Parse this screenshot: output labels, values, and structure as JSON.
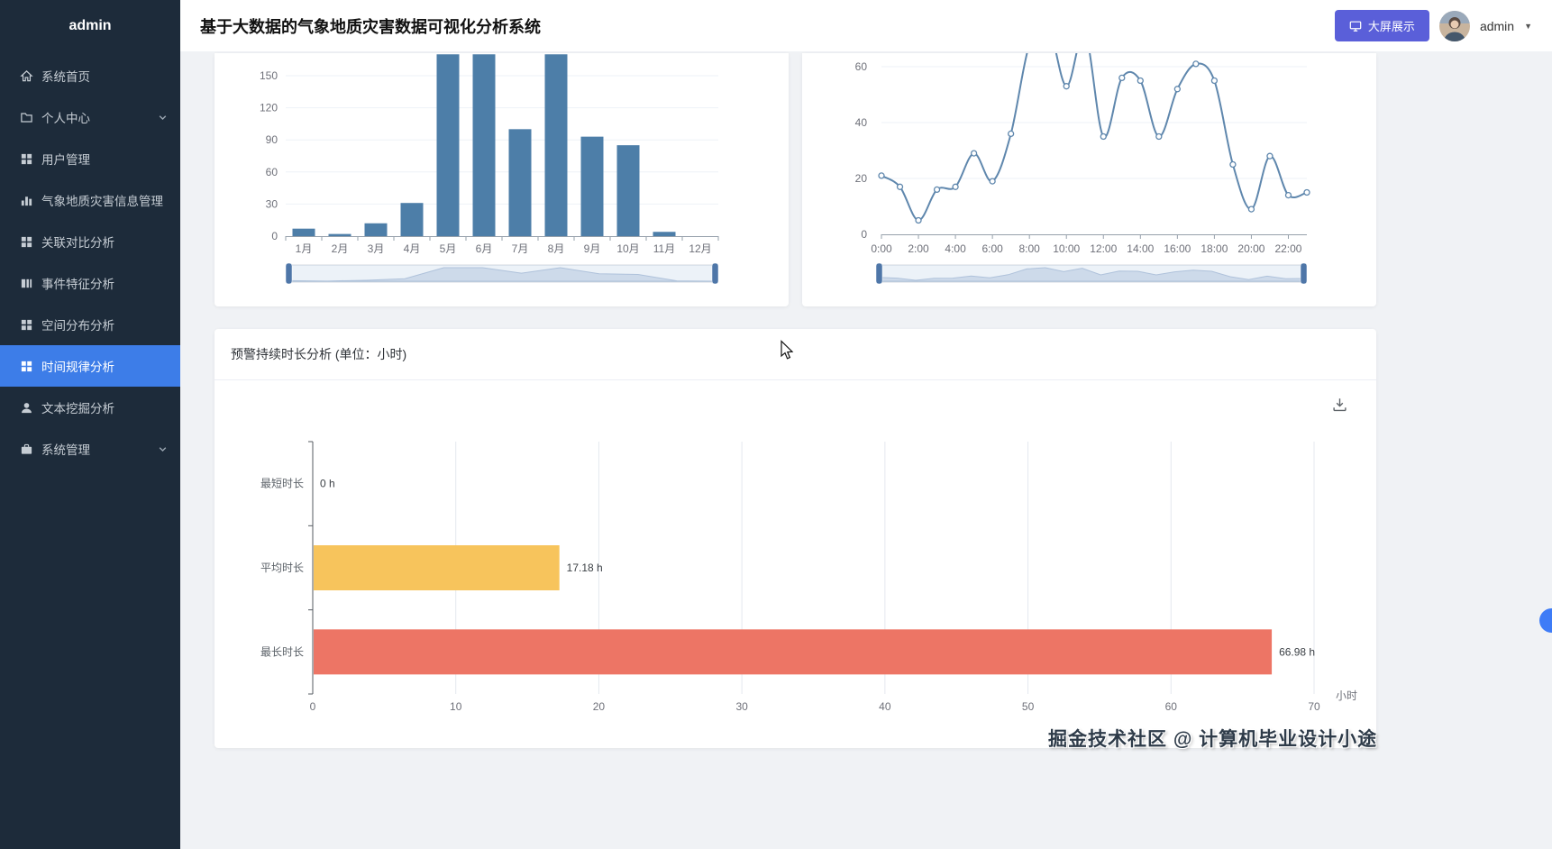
{
  "colors": {
    "sidebar_bg": "#1d2b3a",
    "active_menu": "#3d7de8",
    "primary_button": "#5a5fd9",
    "bar_blue": "#4d7ea8",
    "line_blue": "#5f87ad",
    "bar_yellow": "#f7c45c",
    "bar_red": "#ed7565"
  },
  "header": {
    "title": "基于大数据的气象地质灾害数据可视化分析系统",
    "big_screen_label": "大屏展示",
    "username": "admin"
  },
  "sidebar": {
    "brand": "admin",
    "items": [
      {
        "name": "home",
        "label": "系统首页",
        "icon": "home-icon",
        "active": false,
        "expandable": false
      },
      {
        "name": "personal-center",
        "label": "个人中心",
        "icon": "folder-icon",
        "active": false,
        "expandable": true
      },
      {
        "name": "user-management",
        "label": "用户管理",
        "icon": "grid-icon",
        "active": false,
        "expandable": false
      },
      {
        "name": "disaster-info-management",
        "label": "气象地质灾害信息管理",
        "icon": "bar-chart-icon",
        "active": false,
        "expandable": false
      },
      {
        "name": "association-analysis",
        "label": "关联对比分析",
        "icon": "grid-icon",
        "active": false,
        "expandable": false
      },
      {
        "name": "event-feature-analysis",
        "label": "事件特征分析",
        "icon": "columns-icon",
        "active": false,
        "expandable": false
      },
      {
        "name": "spatial-analysis",
        "label": "空间分布分析",
        "icon": "grid-icon",
        "active": false,
        "expandable": false
      },
      {
        "name": "time-pattern-analysis",
        "label": "时间规律分析",
        "icon": "grid-icon",
        "active": true,
        "expandable": false
      },
      {
        "name": "text-mining-analysis",
        "label": "文本挖掘分析",
        "icon": "user-icon",
        "active": false,
        "expandable": false
      },
      {
        "name": "system-management",
        "label": "系统管理",
        "icon": "briefcase-icon",
        "active": false,
        "expandable": true
      }
    ]
  },
  "duration_card": {
    "title": "预警持续时长分析 (单位：小时)"
  },
  "watermark": "掘金技术社区 @ 计算机毕业设计小途",
  "chart_data": [
    {
      "type": "bar",
      "title": "",
      "categories": [
        "1月",
        "2月",
        "3月",
        "4月",
        "5月",
        "6月",
        "7月",
        "8月",
        "9月",
        "10月",
        "11月",
        "12月"
      ],
      "values": [
        7,
        2,
        12,
        31,
        170,
        170,
        100,
        170,
        93,
        85,
        4,
        0
      ],
      "yticks": [
        0,
        30,
        60,
        90,
        120,
        150
      ],
      "xlabel": "",
      "ylabel": "",
      "color": "#4d7ea8",
      "datazoom_slider": true,
      "note": "card cropped at top by page scroll; bars for 5月/6月/8月 extend past visible top (>150)"
    },
    {
      "type": "line",
      "title": "",
      "x": [
        "0:00",
        "1:00",
        "2:00",
        "3:00",
        "4:00",
        "5:00",
        "6:00",
        "7:00",
        "8:00",
        "9:00",
        "10:00",
        "11:00",
        "12:00",
        "13:00",
        "14:00",
        "15:00",
        "16:00",
        "17:00",
        "18:00",
        "19:00",
        "20:00",
        "21:00",
        "22:00",
        "23:00"
      ],
      "values": [
        21,
        17,
        5,
        16,
        17,
        29,
        19,
        36,
        68,
        75,
        53,
        72,
        35,
        56,
        55,
        35,
        52,
        61,
        55,
        25,
        9,
        28,
        14,
        15
      ],
      "yticks": [
        0,
        20,
        40,
        60
      ],
      "xtick_labels": [
        "0:00",
        "2:00",
        "4:00",
        "6:00",
        "8:00",
        "10:00",
        "12:00",
        "14:00",
        "16:00",
        "18:00",
        "20:00",
        "22:00"
      ],
      "xlabel": "",
      "ylabel": "",
      "color": "#5f87ad",
      "smooth": true,
      "datazoom_slider": true,
      "note": "peaks near 9:00 and 11:00 cropped above 60 by page scroll"
    },
    {
      "type": "bar",
      "orientation": "horizontal",
      "title": "预警持续时长分析 (单位：小时)",
      "categories": [
        "最短时长",
        "平均时长",
        "最长时长"
      ],
      "values": [
        0,
        17.18,
        66.98
      ],
      "value_labels": [
        "0 h",
        "17.18 h",
        "66.98 h"
      ],
      "bar_colors": [
        null,
        "#f7c45c",
        "#ed7565"
      ],
      "xticks": [
        0,
        10,
        20,
        30,
        40,
        50,
        60,
        70
      ],
      "xlim": [
        0,
        70
      ],
      "x_axis_name": "小时",
      "grid": true
    }
  ]
}
